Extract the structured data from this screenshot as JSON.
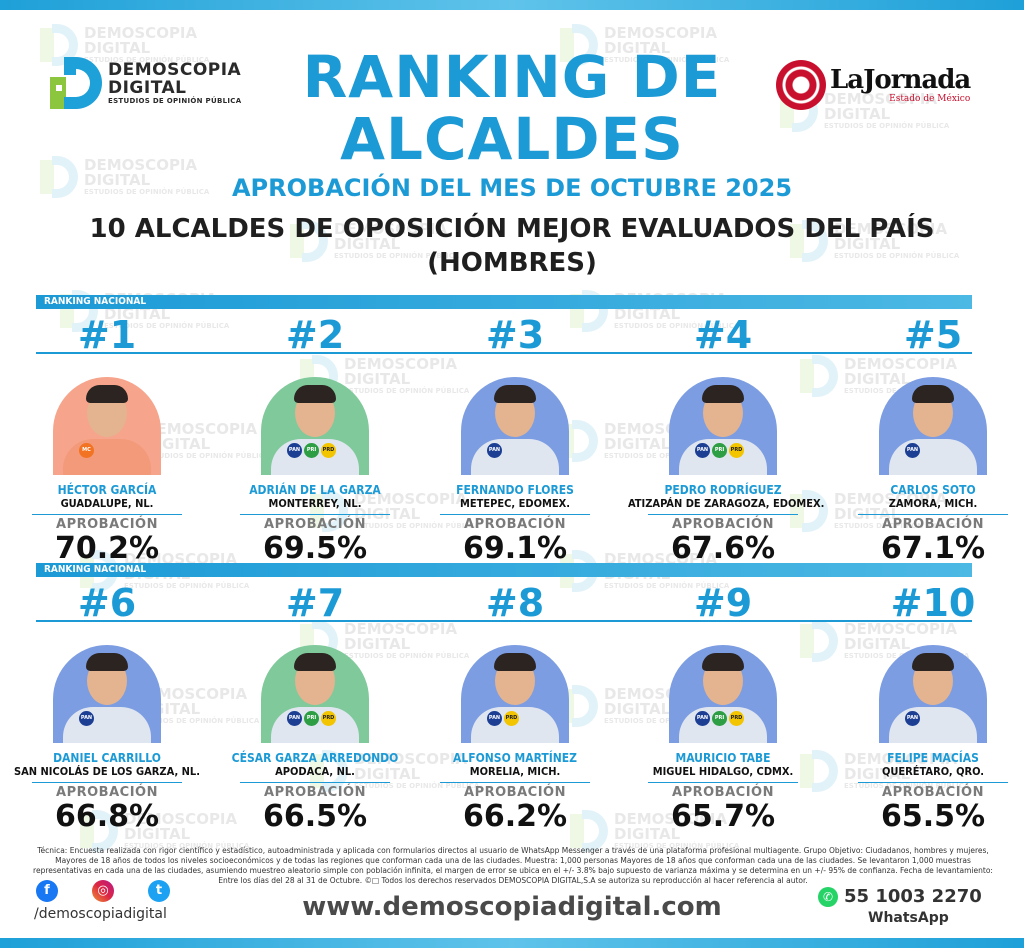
{
  "brand": {
    "line1": "DEMOSCOPIA",
    "line2": "DIGITAL",
    "line3": "ESTUDIOS DE OPINIÓN PÚBLICA"
  },
  "partner": {
    "name": "LaJornada",
    "region": "Estado de México"
  },
  "title": {
    "line1": "RANKING DE",
    "line2": "ALCALDES",
    "subtitle": "APROBACIÓN DEL MES DE OCTUBRE 2025",
    "heading_line1": "10 ALCALDES DE OPOSICIÓN MEJOR EVALUADOS DEL PAÍS",
    "heading_line2": "(HOMBRES)"
  },
  "section_label": "RANKING NACIONAL",
  "approval_label": "APROBACIÓN",
  "mayors": [
    {
      "rank": "#1",
      "name": "HÉCTOR GARCÍA",
      "city": "GUADALUPE, NL.",
      "approval": "70.2%",
      "party_logos": [
        "MC"
      ]
    },
    {
      "rank": "#2",
      "name": "ADRIÁN DE LA GARZA",
      "city": "MONTERREY, NL.",
      "approval": "69.5%",
      "party_logos": [
        "PAN",
        "PRI",
        "PRD"
      ]
    },
    {
      "rank": "#3",
      "name": "FERNANDO FLORES",
      "city": "METEPEC, EDOMEX.",
      "approval": "69.1%",
      "party_logos": [
        "PAN"
      ]
    },
    {
      "rank": "#4",
      "name": "PEDRO RODRÍGUEZ",
      "city": "ATIZAPÁN DE ZARAGOZA, EDOMEX.",
      "approval": "67.6%",
      "party_logos": [
        "PAN",
        "PRI",
        "PRD"
      ]
    },
    {
      "rank": "#5",
      "name": "CARLOS SOTO",
      "city": "ZAMORA, MICH.",
      "approval": "67.1%",
      "party_logos": [
        "PAN"
      ]
    },
    {
      "rank": "#6",
      "name": "DANIEL CARRILLO",
      "city": "SAN NICOLÁS DE LOS GARZA, NL.",
      "approval": "66.8%",
      "party_logos": [
        "PAN"
      ]
    },
    {
      "rank": "#7",
      "name": "CÉSAR GARZA ARREDONDO",
      "city": "APODACA, NL.",
      "approval": "66.5%",
      "party_logos": [
        "PAN",
        "PRI",
        "PRD"
      ]
    },
    {
      "rank": "#8",
      "name": "ALFONSO MARTÍNEZ",
      "city": "MORELIA, MICH.",
      "approval": "66.2%",
      "party_logos": [
        "PAN",
        "PRD"
      ]
    },
    {
      "rank": "#9",
      "name": "MAURICIO TABE",
      "city": "MIGUEL HIDALGO, CDMX.",
      "approval": "65.7%",
      "party_logos": [
        "PAN",
        "PRI",
        "PRD"
      ]
    },
    {
      "rank": "#10",
      "name": "FELIPE MACÍAS",
      "city": "QUERÉTARO, QRO.",
      "approval": "65.5%",
      "party_logos": [
        "PAN"
      ]
    }
  ],
  "fine_print": "Técnica: Encuesta realizada con rigor científico y estadístico, autoadministrada y aplicada con formularios directos al usuario de WhatsApp Messenger a través de una plataforma profesional multiagente. Grupo Objetivo: Ciudadanos, hombres y mujeres, Mayores de 18 años de todos los niveles socioeconómicos y de todas las regiones que conforman cada una de las ciudades. Muestra: 1,000 personas Mayores de 18 años que conforman cada una de las ciudades. Se levantaron 1,000 muestras representativas en cada una de las ciudades, asumiendo muestreo aleatorio simple con población infinita, el margen de error se ubica en el +/- 3.8% bajo supuesto de varianza máxima y se determina en un +/- 95% de confianza. Fecha de levantamiento: Entre los días del 28 al 31 de Octubre. ©□ Todos los derechos reservados DEMOSCOPIA DIGITAL,S.A se autoriza su reproducción al hacer referencia al autor.",
  "footer": {
    "handle": "/demoscopiadigital",
    "website": "www.demoscopiadigital.com",
    "phone": "55 1003 2270",
    "whatsapp_label": "WhatsApp"
  },
  "colors": {
    "accent": "#1c9ad6",
    "green": "#8cc63f",
    "jornada_red": "#c8102e"
  },
  "icons": [
    "facebook-icon",
    "instagram-icon",
    "twitter-icon",
    "whatsapp-icon"
  ]
}
